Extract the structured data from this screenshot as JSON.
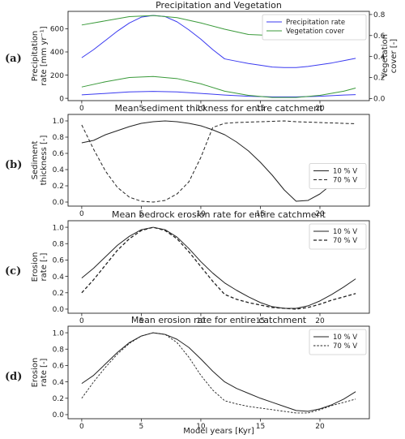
{
  "figure": {
    "xlabel": "Model years [Kyr]",
    "xticks": [
      0,
      5,
      10,
      15,
      20
    ],
    "xlim": [
      -1.15,
      24.15
    ]
  },
  "chart_data": [
    {
      "id": "a",
      "type": "line",
      "panel_label": "(a)",
      "title": "Precipitation and Vegetation",
      "ylabel": "Precipitation rate [mm yr⁻¹]",
      "ylabel_lines": [
        "Precipitation",
        "rate [mm yr⁻¹]"
      ],
      "ylim": [
        -20,
        750
      ],
      "yticks": [
        0,
        200,
        400,
        600
      ],
      "ylabel_right": "Vegetation cover [-]",
      "ylabel_right_lines": [
        "Vegetation",
        "cover [-]"
      ],
      "ylim_right": [
        -0.02,
        0.83
      ],
      "yticks_right": [
        "0.0",
        "0.2",
        "0.4",
        "0.6",
        "0.8"
      ],
      "legend": {
        "position": "top-right"
      },
      "series": [
        {
          "name": "Precipitation rate",
          "color": "#3a3af0",
          "axis": "left",
          "legend": true,
          "x": [
            0,
            1,
            2,
            3,
            4,
            5,
            6,
            7,
            8,
            9,
            10,
            11,
            12,
            13,
            14,
            15,
            16,
            17,
            18,
            19,
            20,
            21,
            22,
            23
          ],
          "y": [
            350,
            420,
            500,
            580,
            650,
            700,
            715,
            705,
            660,
            590,
            510,
            420,
            340,
            320,
            300,
            285,
            270,
            265,
            265,
            275,
            290,
            305,
            325,
            345
          ]
        },
        {
          "name": "",
          "color": "#3a3af0",
          "axis": "left",
          "legend": false,
          "x": [
            0,
            2,
            4,
            6,
            8,
            10,
            12,
            14,
            16,
            18,
            20,
            22,
            23
          ],
          "y": [
            30,
            42,
            55,
            60,
            55,
            42,
            28,
            18,
            12,
            12,
            18,
            28,
            32
          ]
        },
        {
          "name": "Vegetation cover",
          "color": "#3a9a3a",
          "axis": "right",
          "legend": true,
          "x": [
            0,
            2,
            4,
            6,
            8,
            10,
            12,
            14,
            16,
            18,
            20,
            22,
            23
          ],
          "y": [
            0.7,
            0.74,
            0.78,
            0.79,
            0.77,
            0.72,
            0.66,
            0.61,
            0.6,
            0.6,
            0.62,
            0.66,
            0.68
          ]
        },
        {
          "name": "",
          "color": "#3a9a3a",
          "axis": "right",
          "legend": false,
          "x": [
            0,
            2,
            4,
            6,
            8,
            10,
            12,
            14,
            16,
            18,
            20,
            22,
            23
          ],
          "y": [
            0.11,
            0.16,
            0.2,
            0.21,
            0.19,
            0.14,
            0.07,
            0.03,
            0.01,
            0.01,
            0.03,
            0.07,
            0.1
          ]
        }
      ]
    },
    {
      "id": "b",
      "type": "line",
      "panel_label": "(b)",
      "title": "Mean sediment thickness for entire catchment",
      "ylabel": "Sediment thickness [-]",
      "ylabel_lines": [
        "Sediment",
        "thickness [-]"
      ],
      "ylim": [
        -0.05,
        1.08
      ],
      "yticks": [
        "0.0",
        "0.2",
        "0.4",
        "0.6",
        "0.8",
        "1.0"
      ],
      "legend": {
        "position": "center-right"
      },
      "series": [
        {
          "name": "10 % V",
          "color": "#222222",
          "dash": "solid",
          "width": 1.0,
          "x": [
            0,
            1,
            2,
            3,
            4,
            5,
            6,
            7,
            8,
            9,
            10,
            11,
            12,
            13,
            14,
            15,
            16,
            17,
            18,
            19,
            20,
            21,
            22,
            23
          ],
          "y": [
            0.73,
            0.76,
            0.83,
            0.88,
            0.93,
            0.97,
            0.99,
            1.0,
            0.99,
            0.97,
            0.94,
            0.89,
            0.83,
            0.74,
            0.63,
            0.49,
            0.33,
            0.15,
            0.01,
            0.02,
            0.1,
            0.22,
            0.33,
            0.43
          ]
        },
        {
          "name": "70 % V",
          "color": "#222222",
          "dash": "dashed",
          "width": 1.0,
          "x": [
            0,
            1,
            2,
            3,
            4,
            5,
            6,
            7,
            8,
            9,
            10,
            11,
            12,
            13,
            14,
            15,
            16,
            17,
            18,
            19,
            20,
            21,
            22,
            23
          ],
          "y": [
            0.95,
            0.65,
            0.38,
            0.18,
            0.06,
            0.01,
            0.0,
            0.02,
            0.1,
            0.25,
            0.55,
            0.92,
            0.97,
            0.98,
            0.985,
            0.99,
            0.995,
            1.0,
            0.99,
            0.985,
            0.98,
            0.975,
            0.97,
            0.965
          ]
        }
      ]
    },
    {
      "id": "c",
      "type": "line",
      "panel_label": "(c)",
      "title": "Mean bedrock erosion rate for entire catchment",
      "ylabel": "Erosion rate [-]",
      "ylabel_lines": [
        "Erosion",
        "rate [-]"
      ],
      "ylim": [
        -0.05,
        1.08
      ],
      "yticks": [
        "0.0",
        "0.2",
        "0.4",
        "0.6",
        "0.8",
        "1.0"
      ],
      "legend": {
        "position": "top-right"
      },
      "series": [
        {
          "name": "10 % V",
          "color": "#222222",
          "dash": "solid",
          "width": 1.0,
          "x": [
            0,
            1,
            2,
            3,
            4,
            5,
            6,
            7,
            8,
            9,
            10,
            11,
            12,
            13,
            14,
            15,
            16,
            17,
            18,
            19,
            20,
            21,
            22,
            23
          ],
          "y": [
            0.38,
            0.5,
            0.64,
            0.78,
            0.89,
            0.97,
            1.0,
            0.97,
            0.88,
            0.74,
            0.58,
            0.44,
            0.32,
            0.23,
            0.15,
            0.08,
            0.03,
            0.01,
            0.01,
            0.04,
            0.1,
            0.18,
            0.27,
            0.37
          ]
        },
        {
          "name": "70 % V",
          "color": "#222222",
          "dash": "dashed",
          "width": 1.3,
          "x": [
            0,
            1,
            2,
            3,
            4,
            5,
            6,
            7,
            8,
            9,
            10,
            11,
            12,
            13,
            14,
            15,
            16,
            17,
            18,
            19,
            20,
            21,
            22,
            23
          ],
          "y": [
            0.2,
            0.36,
            0.54,
            0.72,
            0.86,
            0.96,
            1.0,
            0.96,
            0.86,
            0.7,
            0.52,
            0.34,
            0.18,
            0.12,
            0.08,
            0.05,
            0.02,
            0.01,
            0.0,
            0.02,
            0.06,
            0.11,
            0.15,
            0.19
          ]
        }
      ]
    },
    {
      "id": "d",
      "type": "line",
      "panel_label": "(d)",
      "title": "Mean erosion rate for entire catchment",
      "ylabel": "Erosion rate [-]",
      "ylabel_lines": [
        "Erosion",
        "rate [-]"
      ],
      "ylim": [
        -0.05,
        1.08
      ],
      "yticks": [
        "0.0",
        "0.2",
        "0.4",
        "0.6",
        "0.8",
        "1.0"
      ],
      "legend": {
        "position": "top-right"
      },
      "series": [
        {
          "name": "10 % V",
          "color": "#222222",
          "dash": "solid",
          "width": 1.0,
          "x": [
            0,
            1,
            2,
            3,
            4,
            5,
            6,
            7,
            8,
            9,
            10,
            11,
            12,
            13,
            14,
            15,
            16,
            17,
            18,
            19,
            20,
            21,
            22,
            23
          ],
          "y": [
            0.38,
            0.48,
            0.62,
            0.76,
            0.88,
            0.96,
            1.0,
            0.98,
            0.92,
            0.82,
            0.68,
            0.53,
            0.4,
            0.32,
            0.26,
            0.2,
            0.15,
            0.1,
            0.05,
            0.04,
            0.07,
            0.12,
            0.19,
            0.28
          ]
        },
        {
          "name": "70 % V",
          "color": "#222222",
          "dash": "dotted-dash",
          "width": 0.9,
          "x": [
            0,
            1,
            2,
            3,
            4,
            5,
            6,
            7,
            8,
            9,
            10,
            11,
            12,
            13,
            14,
            15,
            16,
            17,
            18,
            19,
            20,
            21,
            22,
            23
          ],
          "y": [
            0.2,
            0.4,
            0.58,
            0.74,
            0.87,
            0.96,
            1.0,
            0.98,
            0.88,
            0.7,
            0.48,
            0.3,
            0.17,
            0.13,
            0.1,
            0.08,
            0.06,
            0.04,
            0.02,
            0.02,
            0.06,
            0.11,
            0.15,
            0.19
          ]
        }
      ]
    }
  ]
}
